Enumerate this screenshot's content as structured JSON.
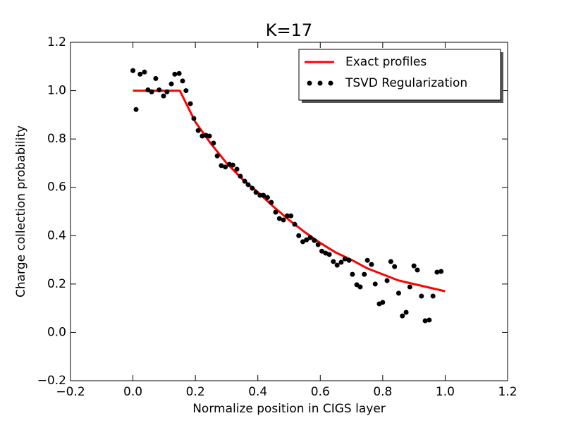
{
  "chart_data": {
    "type": "line",
    "title": "K=17",
    "x_label": "Normalize position in CIGS layer",
    "y_label": "Charge collection probability",
    "xlim": [
      -0.2,
      1.2
    ],
    "ylim": [
      -0.2,
      1.2
    ],
    "xticks": [
      {
        "value": -0.2,
        "label": "−0.2"
      },
      {
        "value": 0,
        "label": "0.0"
      },
      0.2,
      0.4,
      0.6,
      0.8,
      {
        "value": 1,
        "label": "1.0"
      },
      1.2
    ],
    "yticks": [
      {
        "value": -0.2,
        "label": "−0.2"
      },
      {
        "value": 0,
        "label": "0.0"
      },
      0.2,
      0.4,
      0.6,
      0.8,
      {
        "value": 1,
        "label": "1.0"
      },
      1.2
    ],
    "legend": "upper right",
    "series": [
      {
        "name": "Exact profiles",
        "type": "line",
        "color": "#ff0000",
        "x": [
          0,
          0.15,
          0.2,
          0.25,
          0.3,
          0.35,
          0.4,
          0.45,
          0.5,
          0.55,
          0.6,
          0.65,
          0.7,
          0.75,
          0.8,
          0.85,
          0.9,
          0.95,
          1.0
        ],
        "values": [
          1,
          1,
          0.87,
          0.78,
          0.7,
          0.635,
          0.58,
          0.52,
          0.465,
          0.415,
          0.37,
          0.33,
          0.3,
          0.265,
          0.24,
          0.215,
          0.2,
          0.185,
          0.17
        ]
      },
      {
        "name": "TSVD Regularization",
        "type": "scatter",
        "color": "#000000",
        "x": [
          0.0,
          0.01,
          0.023,
          0.037,
          0.048,
          0.06,
          0.073,
          0.084,
          0.098,
          0.109,
          0.123,
          0.134,
          0.148,
          0.159,
          0.17,
          0.184,
          0.195,
          0.209,
          0.222,
          0.234,
          0.245,
          0.258,
          0.27,
          0.283,
          0.296,
          0.309,
          0.32,
          0.333,
          0.344,
          0.358,
          0.369,
          0.382,
          0.394,
          0.407,
          0.418,
          0.431,
          0.443,
          0.457,
          0.469,
          0.482,
          0.494,
          0.506,
          0.518,
          0.531,
          0.544,
          0.556,
          0.568,
          0.581,
          0.593,
          0.605,
          0.617,
          0.629,
          0.642,
          0.654,
          0.667,
          0.679,
          0.692,
          0.703,
          0.717,
          0.728,
          0.741,
          0.751,
          0.764,
          0.776,
          0.789,
          0.8,
          0.814,
          0.826,
          0.838,
          0.851,
          0.863,
          0.875,
          0.887,
          0.9,
          0.911,
          0.924,
          0.936,
          0.949,
          0.961,
          0.974,
          0.987
        ],
        "values": [
          1.083,
          0.922,
          1.068,
          1.077,
          1.003,
          0.995,
          1.05,
          1.003,
          0.978,
          0.995,
          1.028,
          1.068,
          1.071,
          1.04,
          1.0,
          0.946,
          0.885,
          0.835,
          0.812,
          0.815,
          0.812,
          0.783,
          0.73,
          0.69,
          0.684,
          0.695,
          0.692,
          0.675,
          0.646,
          0.625,
          0.611,
          0.596,
          0.579,
          0.567,
          0.567,
          0.558,
          0.538,
          0.497,
          0.471,
          0.465,
          0.482,
          0.482,
          0.447,
          0.4,
          0.375,
          0.383,
          0.392,
          0.38,
          0.363,
          0.336,
          0.328,
          0.322,
          0.293,
          0.278,
          0.29,
          0.304,
          0.298,
          0.24,
          0.197,
          0.188,
          0.24,
          0.298,
          0.281,
          0.2,
          0.118,
          0.124,
          0.214,
          0.293,
          0.272,
          0.162,
          0.068,
          0.083,
          0.188,
          0.275,
          0.258,
          0.15,
          0.048,
          0.051,
          0.15,
          0.249,
          0.252
        ]
      }
    ]
  }
}
